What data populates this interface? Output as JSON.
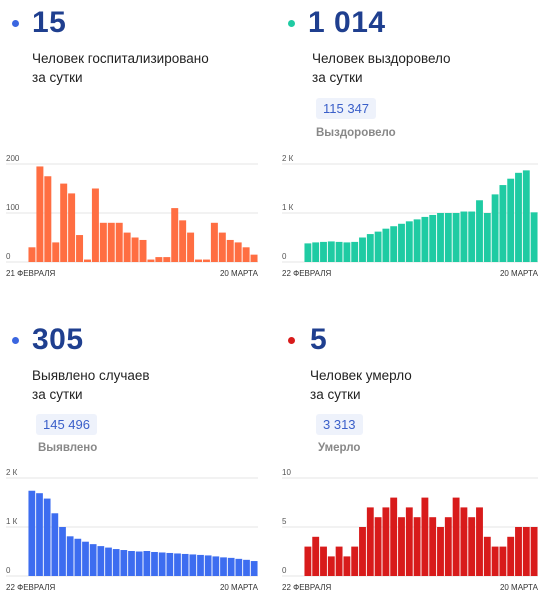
{
  "panels": [
    {
      "id": "hospitalized",
      "value": "15",
      "label_line1": "Человек госпитализировано",
      "label_line2": "за сутки",
      "dot_color": "#3a66e0",
      "bar_color": "#ff6e42",
      "total": null,
      "total_label": null
    },
    {
      "id": "recovered",
      "value": "1 014",
      "label_line1": "Человек выздоровело",
      "label_line2": "за сутки",
      "dot_color": "#1fcba3",
      "bar_color": "#1fcba3",
      "total": "115 347",
      "total_label": "Выздоровело"
    },
    {
      "id": "cases",
      "value": "305",
      "label_line1": "Выявлено случаев",
      "label_line2": "за сутки",
      "dot_color": "#3a66e0",
      "bar_color": "#3d6df0",
      "total": "145 496",
      "total_label": "Выявлено"
    },
    {
      "id": "deaths",
      "value": "5",
      "label_line1": "Человек умерло",
      "label_line2": "за сутки",
      "dot_color": "#d81b1b",
      "bar_color": "#d81b1b",
      "total": "3 313",
      "total_label": "Умерло"
    }
  ],
  "chart_data": [
    {
      "type": "bar",
      "series": [
        {
          "values": [
            30,
            195,
            175,
            40,
            160,
            140,
            55,
            5,
            150,
            80,
            80,
            80,
            60,
            50,
            45,
            5,
            10,
            10,
            110,
            85,
            60,
            5,
            5,
            80,
            60,
            45,
            40,
            30,
            15
          ]
        }
      ],
      "x_start_label": "21 ФЕВРАЛЯ",
      "x_end_label": "20 МАРТА",
      "y_ticks": [
        {
          "value": 0,
          "label": "0"
        },
        {
          "value": 100,
          "label": "100"
        },
        {
          "value": 200,
          "label": "200"
        }
      ],
      "ylim": [
        0,
        200
      ],
      "grid": true,
      "color": "#ff6e42"
    },
    {
      "type": "bar",
      "series": [
        {
          "values": [
            380,
            400,
            410,
            420,
            410,
            400,
            410,
            500,
            570,
            620,
            680,
            730,
            780,
            830,
            870,
            920,
            960,
            1000,
            1000,
            1000,
            1030,
            1030,
            1260,
            1000,
            1380,
            1570,
            1700,
            1820,
            1870,
            1014
          ]
        }
      ],
      "x_start_label": "22 ФЕВРАЛЯ",
      "x_end_label": "20 МАРТА",
      "y_ticks": [
        {
          "value": 0,
          "label": "0"
        },
        {
          "value": 1000,
          "label": "1 К"
        },
        {
          "value": 2000,
          "label": "2 К"
        }
      ],
      "ylim": [
        0,
        2000
      ],
      "grid": true,
      "color": "#1fcba3"
    },
    {
      "type": "bar",
      "series": [
        {
          "values": [
            1740,
            1690,
            1580,
            1280,
            1000,
            810,
            760,
            700,
            650,
            610,
            580,
            550,
            530,
            510,
            500,
            510,
            490,
            480,
            470,
            460,
            450,
            440,
            430,
            420,
            400,
            380,
            370,
            350,
            330,
            305
          ]
        }
      ],
      "x_start_label": "22 ФЕВРАЛЯ",
      "x_end_label": "20 МАРТА",
      "y_ticks": [
        {
          "value": 0,
          "label": "0"
        },
        {
          "value": 1000,
          "label": "1 К"
        },
        {
          "value": 2000,
          "label": "2 К"
        }
      ],
      "ylim": [
        0,
        2000
      ],
      "grid": true,
      "color": "#3d6df0"
    },
    {
      "type": "bar",
      "series": [
        {
          "values": [
            3,
            4,
            3,
            2,
            3,
            2,
            3,
            5,
            7,
            6,
            7,
            8,
            6,
            7,
            6,
            8,
            6,
            5,
            6,
            8,
            7,
            6,
            7,
            4,
            3,
            3,
            4,
            5,
            5,
            5
          ]
        }
      ],
      "x_start_label": "22 ФЕВРАЛЯ",
      "x_end_label": "20 МАРТА",
      "y_ticks": [
        {
          "value": 0,
          "label": "0"
        },
        {
          "value": 5,
          "label": "5"
        },
        {
          "value": 10,
          "label": "10"
        }
      ],
      "ylim": [
        0,
        10
      ],
      "grid": true,
      "color": "#d81b1b"
    }
  ]
}
